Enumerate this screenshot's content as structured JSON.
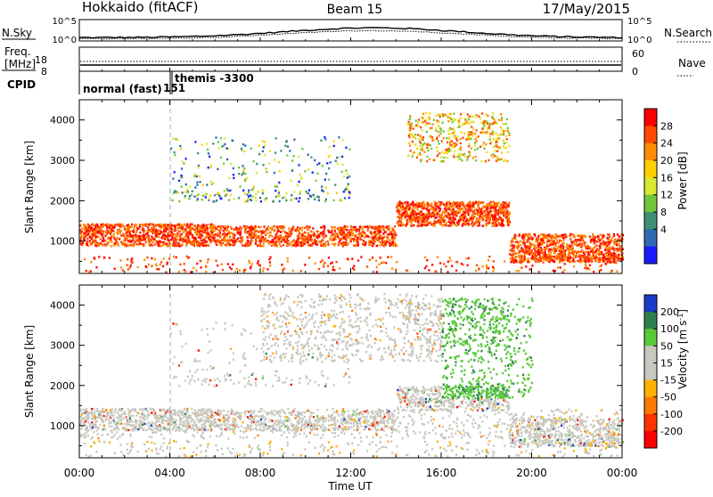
{
  "header": {
    "station": "Hokkaido (fitACF)",
    "beam": "Beam 15",
    "date": "17/May/2015"
  },
  "status_panels": {
    "nsky_label": "N.Sky",
    "nsky_ticks": [
      "10^5",
      "10^0"
    ],
    "nsearch_label": "N.Search",
    "nsearch_ticks": [
      "10^5",
      "10^0"
    ],
    "freq_label_1": "Freq.",
    "freq_label_2": "[MHz]",
    "freq_ticks": [
      "18",
      "8"
    ],
    "nave_label": "Nave",
    "nave_ticks": [
      "60",
      "0"
    ],
    "cpid_label": "CPID",
    "cpid_normal": "normal (fast)",
    "cpid_number": "151",
    "cpid_themis": "themis -3300"
  },
  "chart_data": [
    {
      "type": "heatmap",
      "name_text": "Power",
      "ylabel": "Slant Range [km]",
      "xlabel": "Time UT",
      "x_ticks": [
        "00:00",
        "04:00",
        "08:00",
        "12:00",
        "16:00",
        "20:00",
        "00:00"
      ],
      "x_range_hours": [
        0,
        24
      ],
      "y_ticks": [
        1000,
        2000,
        3000,
        4000
      ],
      "ylim": [
        200,
        4500
      ],
      "colorbar_label": "Power [dB]",
      "colorbar_ticks": [
        "28",
        "24",
        "20",
        "16",
        "12",
        "8",
        "4"
      ],
      "colorbar_colors": [
        "#ff0000",
        "#ff4a00",
        "#ff8c00",
        "#ffd000",
        "#d8e830",
        "#6fc63a",
        "#3f8f74",
        "#2f6ab0",
        "#1a1aff"
      ],
      "features": [
        {
          "from_h": 0.0,
          "to_h": 6.0,
          "range_lo": 900,
          "range_hi": 1450,
          "level": "high"
        },
        {
          "from_h": 6.0,
          "to_h": 14.0,
          "range_lo": 900,
          "range_hi": 1400,
          "level": "high"
        },
        {
          "from_h": 14.0,
          "to_h": 19.0,
          "range_lo": 1400,
          "range_hi": 2000,
          "level": "high"
        },
        {
          "from_h": 19.0,
          "to_h": 24.0,
          "range_lo": 500,
          "range_hi": 1200,
          "level": "high"
        },
        {
          "from_h": 4.0,
          "to_h": 12.0,
          "range_lo": 2000,
          "range_hi": 3600,
          "level": "low"
        },
        {
          "from_h": 14.5,
          "to_h": 19.0,
          "range_lo": 3000,
          "range_hi": 4200,
          "level": "medium"
        }
      ]
    },
    {
      "type": "heatmap",
      "name_text": "Velocity",
      "ylabel": "Slant Range [km]",
      "xlabel": "Time UT",
      "x_ticks": [
        "00:00",
        "04:00",
        "08:00",
        "12:00",
        "16:00",
        "20:00",
        "00:00"
      ],
      "x_range_hours": [
        0,
        24
      ],
      "y_ticks": [
        1000,
        2000,
        3000,
        4000
      ],
      "ylim": [
        200,
        4500
      ],
      "colorbar_label": "Velocity [m s",
      "colorbar_label_sup": "-1",
      "colorbar_label_end": "]",
      "colorbar_ticks": [
        "200",
        "100",
        "50",
        "15",
        "-15",
        "-50",
        "-100",
        "-200"
      ],
      "colorbar_colors": [
        "#1a3ac8",
        "#2f7f4f",
        "#59c93a",
        "#c8c8c0",
        "#c8c8c0",
        "#ffb000",
        "#ff7a00",
        "#ff3300",
        "#ff0000"
      ],
      "features": [
        {
          "from_h": 0.0,
          "to_h": 24.0,
          "range_lo": 700,
          "range_hi": 1450,
          "velocity": "near-zero"
        },
        {
          "from_h": 8.0,
          "to_h": 16.0,
          "range_lo": 2600,
          "range_hi": 4300,
          "velocity": "near-zero"
        },
        {
          "from_h": 16.0,
          "to_h": 20.0,
          "range_lo": 1700,
          "range_hi": 4200,
          "velocity": "positive"
        }
      ]
    }
  ]
}
